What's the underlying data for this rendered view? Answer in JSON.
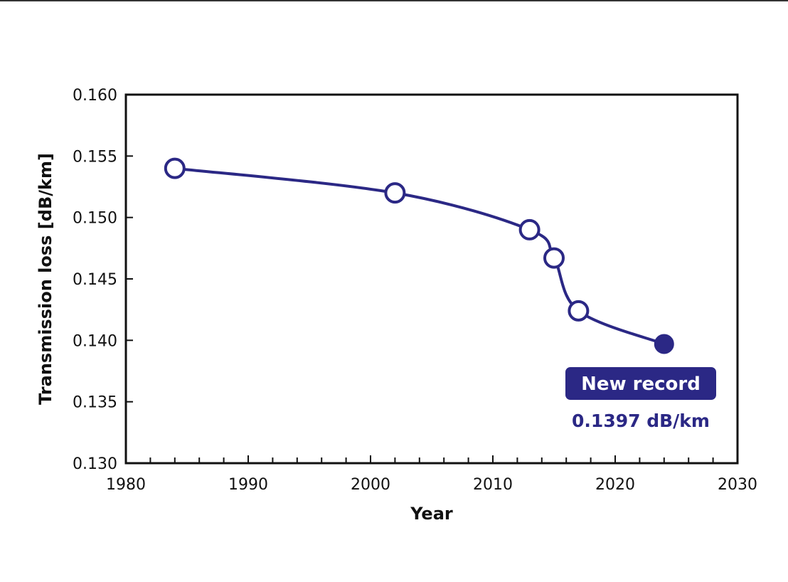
{
  "chart_data": {
    "type": "line",
    "title": "",
    "xlabel": "Year",
    "ylabel": "Transmission loss [dB/km]",
    "xlim": [
      1980,
      2030
    ],
    "ylim": [
      0.13,
      0.16
    ],
    "xticks": [
      "1980",
      "1990",
      "2000",
      "2010",
      "2020",
      "2030"
    ],
    "yticks": [
      "0.160",
      "0.155",
      "0.150",
      "0.145",
      "0.140",
      "0.135",
      "0.130"
    ],
    "grid": false,
    "color": "#2b2885",
    "series": [
      {
        "x": [
          1984,
          2002,
          2013,
          2015,
          2017,
          2024
        ],
        "y": [
          0.154,
          0.152,
          0.149,
          0.1467,
          0.1424,
          0.1397
        ],
        "filled": [
          false,
          false,
          false,
          false,
          false,
          true
        ]
      }
    ],
    "annotation": {
      "badge": "New record",
      "value": "0.1397 dB/km"
    }
  }
}
